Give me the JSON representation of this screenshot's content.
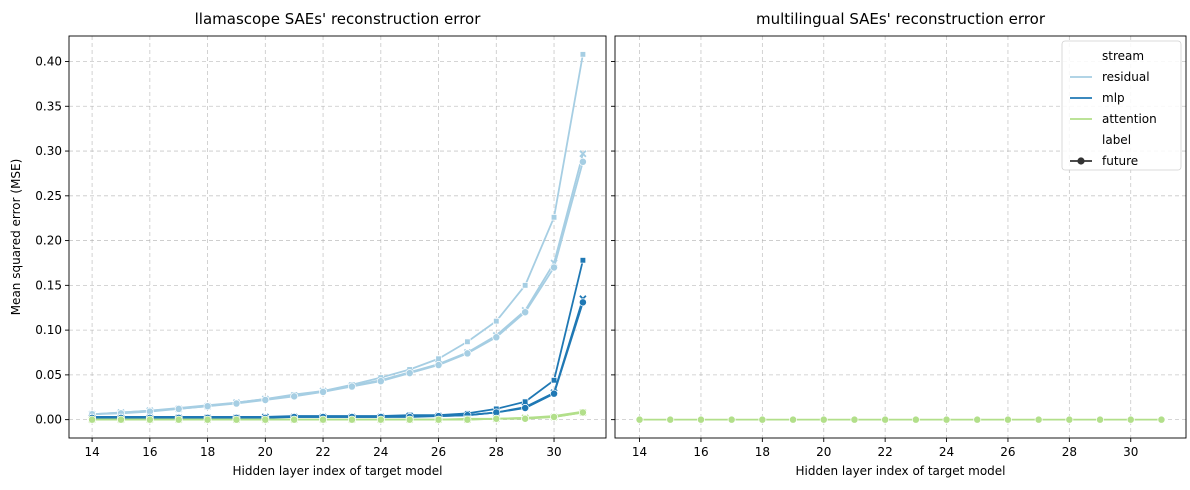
{
  "chart_data": [
    {
      "type": "line",
      "title": "llamascope SAEs' reconstruction error",
      "xlabel": "Hidden layer index of target model",
      "ylabel": "Mean squared error (MSE)",
      "xlim": [
        13.2,
        31.8
      ],
      "ylim": [
        -0.0205,
        0.4285
      ],
      "xticks": [
        14,
        16,
        18,
        20,
        22,
        24,
        26,
        28,
        30
      ],
      "yticks": [
        0.0,
        0.05,
        0.1,
        0.15,
        0.2,
        0.25,
        0.3,
        0.35,
        0.4
      ],
      "ytick_labels": [
        "0.00",
        "0.05",
        "0.10",
        "0.15",
        "0.20",
        "0.25",
        "0.30",
        "0.35",
        "0.40"
      ],
      "grid": true,
      "x": [
        14,
        15,
        16,
        17,
        18,
        19,
        20,
        21,
        22,
        23,
        24,
        25,
        26,
        27,
        28,
        29,
        30,
        31
      ],
      "series": [
        {
          "stream": "residual",
          "marker": "square",
          "color": "#a6cee3",
          "values": [
            0.006,
            0.008,
            0.01,
            0.013,
            0.016,
            0.019,
            0.023,
            0.028,
            0.032,
            0.039,
            0.047,
            0.056,
            0.068,
            0.087,
            0.11,
            0.15,
            0.226,
            0.408
          ]
        },
        {
          "stream": "residual",
          "marker": "x",
          "color": "#a6cee3",
          "values": [
            0.006,
            0.008,
            0.01,
            0.012,
            0.015,
            0.019,
            0.023,
            0.027,
            0.032,
            0.038,
            0.044,
            0.053,
            0.062,
            0.075,
            0.094,
            0.122,
            0.175,
            0.297
          ]
        },
        {
          "stream": "residual",
          "marker": "circle",
          "color": "#a6cee3",
          "values": [
            0.006,
            0.007,
            0.009,
            0.012,
            0.015,
            0.018,
            0.022,
            0.026,
            0.031,
            0.037,
            0.043,
            0.052,
            0.061,
            0.074,
            0.092,
            0.12,
            0.17,
            0.288
          ]
        },
        {
          "stream": "mlp",
          "marker": "square",
          "color": "#1f78b4",
          "values": [
            0.003,
            0.003,
            0.003,
            0.003,
            0.003,
            0.003,
            0.003,
            0.004,
            0.004,
            0.004,
            0.004,
            0.005,
            0.005,
            0.007,
            0.012,
            0.02,
            0.044,
            0.178
          ]
        },
        {
          "stream": "mlp",
          "marker": "x",
          "color": "#1f78b4",
          "values": [
            0.002,
            0.002,
            0.002,
            0.002,
            0.002,
            0.002,
            0.003,
            0.003,
            0.003,
            0.003,
            0.003,
            0.004,
            0.004,
            0.005,
            0.008,
            0.014,
            0.03,
            0.135
          ]
        },
        {
          "stream": "mlp",
          "marker": "circle",
          "color": "#1f78b4",
          "values": [
            0.002,
            0.002,
            0.002,
            0.002,
            0.002,
            0.002,
            0.002,
            0.003,
            0.003,
            0.003,
            0.003,
            0.003,
            0.004,
            0.005,
            0.008,
            0.013,
            0.029,
            0.131
          ]
        },
        {
          "stream": "attention",
          "marker": "square",
          "color": "#b2df8a",
          "values": [
            0.0,
            0.0,
            0.0,
            0.0,
            0.0,
            0.0,
            0.0,
            0.0,
            0.0,
            0.0,
            0.0,
            0.0,
            0.0,
            0.001,
            0.001,
            0.002,
            0.004,
            0.009
          ]
        },
        {
          "stream": "attention",
          "marker": "x",
          "color": "#b2df8a",
          "values": [
            0.0,
            0.0,
            0.0,
            0.0,
            0.0,
            0.0,
            0.0,
            0.0,
            0.0,
            0.0,
            0.0,
            0.0,
            0.0,
            0.0,
            0.001,
            0.002,
            0.003,
            0.008
          ]
        },
        {
          "stream": "attention",
          "marker": "circle",
          "color": "#b2df8a",
          "values": [
            0.0,
            0.0,
            0.0,
            0.0,
            0.0,
            0.0,
            0.0,
            0.0,
            0.0,
            0.0,
            0.0,
            0.0,
            0.0,
            0.0,
            0.001,
            0.001,
            0.003,
            0.008
          ]
        }
      ]
    },
    {
      "type": "line",
      "title": "multilingual SAEs' reconstruction error",
      "xlabel": "Hidden layer index of target model",
      "ylabel": "",
      "shared_y": true,
      "xlim": [
        13.2,
        31.8
      ],
      "ylim": [
        -0.0205,
        0.4285
      ],
      "xticks": [
        14,
        16,
        18,
        20,
        22,
        24,
        26,
        28,
        30
      ],
      "yticks": [
        0.0,
        0.05,
        0.1,
        0.15,
        0.2,
        0.25,
        0.3,
        0.35,
        0.4
      ],
      "grid": true,
      "x": [
        14,
        15,
        16,
        17,
        18,
        19,
        20,
        21,
        22,
        23,
        24,
        25,
        26,
        27,
        28,
        29,
        30,
        31
      ],
      "series": [
        {
          "stream": "attention",
          "marker": "circle",
          "color": "#b2df8a",
          "values": [
            0.0,
            0.0,
            0.0,
            0.0,
            0.0,
            0.0,
            0.0,
            0.0,
            0.0,
            0.0,
            0.0,
            0.0,
            0.0,
            0.0,
            0.0,
            0.0,
            0.0,
            0.0
          ]
        }
      ],
      "legend": {
        "placement": "top-right",
        "entries": [
          {
            "text": "stream",
            "kind": "header"
          },
          {
            "text": "residual",
            "kind": "line",
            "color": "#a6cee3"
          },
          {
            "text": "mlp",
            "kind": "line",
            "color": "#1f78b4"
          },
          {
            "text": "attention",
            "kind": "line",
            "color": "#b2df8a"
          },
          {
            "text": "label",
            "kind": "header"
          },
          {
            "text": "future",
            "kind": "line-marker",
            "color": "#333333",
            "marker": "circle"
          }
        ]
      }
    }
  ]
}
